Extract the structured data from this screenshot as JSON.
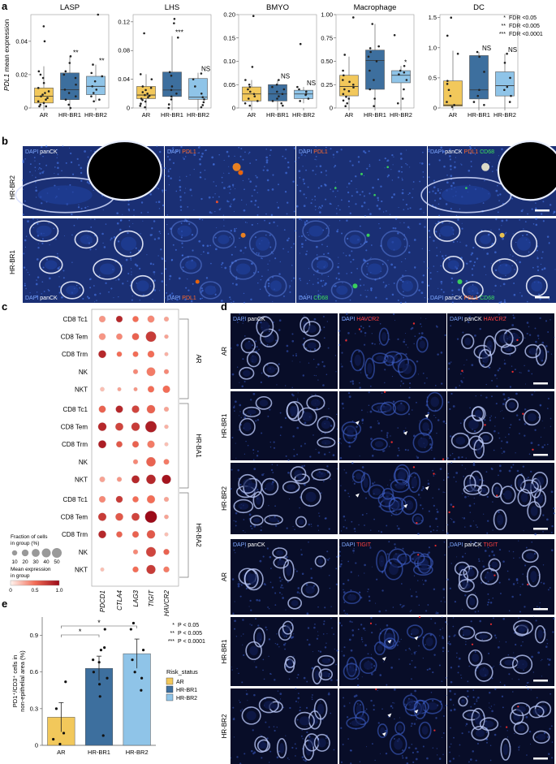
{
  "figure": {
    "panel_a": {
      "letter": "a",
      "ylabel_gene": "PDL1",
      "ylabel_rest": " mean expression",
      "legend": [
        {
          "stars": "*",
          "text": "FDR <0.05"
        },
        {
          "stars": "**",
          "text": "FDR <0.005"
        },
        {
          "stars": "***",
          "text": "FDR <0.0001"
        }
      ]
    },
    "panel_b": {
      "letter": "b",
      "rows": [
        "HR-BR2",
        "HR-BR1"
      ],
      "top_labels": [
        [
          {
            "t": "DAPI",
            "c": "#7fa8ff"
          },
          {
            "t": " panCK",
            "c": "#ffffff"
          }
        ],
        [
          {
            "t": "DAPI",
            "c": "#7fa8ff"
          },
          {
            "t": " PDL1",
            "c": "#ff6a2a"
          }
        ],
        [
          {
            "t": "DAPI",
            "c": "#7fa8ff"
          },
          {
            "t": " PDL1",
            "c": "#ff6a2a"
          }
        ],
        [
          {
            "t": "DAPI",
            "c": "#7fa8ff"
          },
          {
            "t": " panCK",
            "c": "#ffffff"
          },
          {
            "t": " PDL1",
            "c": "#ff6a2a"
          },
          {
            "t": " CD68",
            "c": "#3de05a"
          }
        ]
      ],
      "bottom_labels": [
        [
          {
            "t": "DAPI",
            "c": "#7fa8ff"
          },
          {
            "t": " panCK",
            "c": "#ffffff"
          }
        ],
        [
          {
            "t": "DAPI",
            "c": "#7fa8ff"
          },
          {
            "t": " PDL1",
            "c": "#ff6a2a"
          }
        ],
        [
          {
            "t": "DAPI",
            "c": "#7fa8ff"
          },
          {
            "t": " CD68",
            "c": "#3de05a"
          }
        ],
        [
          {
            "t": "DAPI",
            "c": "#7fa8ff"
          },
          {
            "t": " panCK",
            "c": "#ffffff"
          },
          {
            "t": " PDL1",
            "c": "#ff6a2a"
          },
          {
            "t": " CD68",
            "c": "#3de05a"
          }
        ]
      ]
    },
    "panel_c": {
      "letter": "c",
      "genes": [
        "PDCD1",
        "CTLA4",
        "LAG3",
        "TIGIT",
        "HAVCR2"
      ],
      "groups": [
        {
          "name": "AR",
          "rows": [
            "CD8 Tc1",
            "CD8 Tem",
            "CD8 Trm",
            "NK",
            "NKT"
          ]
        },
        {
          "name": "HR-BA1",
          "rows": [
            "CD8 Tc1",
            "CD8 Tem",
            "CD8 Trm",
            "NK",
            "NKT"
          ]
        },
        {
          "name": "HR-BA2",
          "rows": [
            "CD8 Tc1",
            "CD8 Tem",
            "CD8 Trm",
            "NK",
            "NKT"
          ]
        }
      ],
      "size_legend_title": "Fraction of cells\nin group (%)",
      "size_ticks": [
        "10",
        "20",
        "30",
        "40",
        "50"
      ],
      "color_legend_title": "Mean expression\nin group",
      "color_ticks": [
        "0",
        "0.5",
        "1.0"
      ]
    },
    "panel_d": {
      "letter": "d",
      "top_headers": [
        [
          {
            "t": "DAPI",
            "c": "#7fa8ff"
          },
          {
            "t": " panCK",
            "c": "#ffffff"
          }
        ],
        [
          {
            "t": "DAPI",
            "c": "#7fa8ff"
          },
          {
            "t": " HAVCR2",
            "c": "#ff4040"
          }
        ],
        [
          {
            "t": "DAPI",
            "c": "#7fa8ff"
          },
          {
            "t": " panCK",
            "c": "#ffffff"
          },
          {
            "t": " HAVCR2",
            "c": "#ff4040"
          }
        ]
      ],
      "bottom_headers": [
        [
          {
            "t": "DAPI",
            "c": "#7fa8ff"
          },
          {
            "t": " panCK",
            "c": "#ffffff"
          }
        ],
        [
          {
            "t": "DAPI",
            "c": "#7fa8ff"
          },
          {
            "t": " TIGIT",
            "c": "#ff4040"
          }
        ],
        [
          {
            "t": "DAPI",
            "c": "#7fa8ff"
          },
          {
            "t": " panCK",
            "c": "#ffffff"
          },
          {
            "t": " TIGIT",
            "c": "#ff4040"
          }
        ]
      ],
      "rows": [
        "AR",
        "HR-BR1",
        "HR-BR2"
      ]
    },
    "panel_e": {
      "letter": "e",
      "ylabel": "PD1⁺/CD3⁺ cells in\nnon-epithelial area (%)",
      "legend": [
        {
          "stars": "*",
          "text": "P < 0.05"
        },
        {
          "stars": "**",
          "text": "P < 0.005"
        },
        {
          "stars": "***",
          "text": "P < 0.0001"
        }
      ],
      "risk_title": "Risk_status",
      "risk_items": [
        "AR",
        "HR-BR1",
        "HR-BR2"
      ],
      "sig_marks": [
        "*",
        "*"
      ]
    }
  },
  "colors": {
    "AR": "#f2c85b",
    "HR-BR1": "#3d6f9e",
    "HR-BR2": "#8fc4e8"
  },
  "chart_data": [
    {
      "type": "box",
      "title": "LASP",
      "categories": [
        "AR",
        "HR-BR1",
        "HR-BR2"
      ],
      "ylim": [
        0,
        0.056
      ],
      "yticks": [
        0,
        0.02,
        0.04
      ],
      "ytick_labels": [
        "0",
        "0.02",
        "0.04"
      ],
      "ylabel": "PDL1 mean expression",
      "boxes": [
        {
          "q1": 0.003,
          "median": 0.007,
          "q3": 0.012,
          "whisker_low": 0.0,
          "whisker_high": 0.025
        },
        {
          "q1": 0.005,
          "median": 0.011,
          "q3": 0.021,
          "whisker_low": 0.0,
          "whisker_high": 0.031
        },
        {
          "q1": 0.008,
          "median": 0.013,
          "q3": 0.019,
          "whisker_low": 0.004,
          "whisker_high": 0.026
        }
      ],
      "points": [
        [
          0.049,
          0.04,
          0.022,
          0.02,
          0.018,
          0.015,
          0.012,
          0.01,
          0.009,
          0.008,
          0.007,
          0.006,
          0.005,
          0.004,
          0.003,
          0.002,
          0.001,
          0.001
        ],
        [
          0.031,
          0.027,
          0.022,
          0.02,
          0.018,
          0.014,
          0.011,
          0.009,
          0.007,
          0.005,
          0.002,
          0.0
        ],
        [
          0.056,
          0.026,
          0.021,
          0.019,
          0.016,
          0.013,
          0.011,
          0.009,
          0.007,
          0.005,
          0.004
        ]
      ],
      "sig": [
        "",
        "**",
        "**"
      ]
    },
    {
      "type": "box",
      "title": "LHS",
      "categories": [
        "AR",
        "HR-BR1",
        "HR-BR2"
      ],
      "ylim": [
        0,
        0.13
      ],
      "yticks": [
        0,
        0.04,
        0.08,
        0.12
      ],
      "ytick_labels": [
        "0",
        "0.04",
        "0.08",
        "0.12"
      ],
      "boxes": [
        {
          "q1": 0.013,
          "median": 0.018,
          "q3": 0.03,
          "whisker_low": 0.0,
          "whisker_high": 0.047
        },
        {
          "q1": 0.016,
          "median": 0.025,
          "q3": 0.05,
          "whisker_low": 0.0,
          "whisker_high": 0.1
        },
        {
          "q1": 0.012,
          "median": 0.015,
          "q3": 0.041,
          "whisker_low": 0.0,
          "whisker_high": 0.049
        }
      ],
      "points": [
        [
          0.104,
          0.047,
          0.04,
          0.03,
          0.028,
          0.025,
          0.022,
          0.02,
          0.018,
          0.017,
          0.015,
          0.013,
          0.011,
          0.009,
          0.006,
          0.003,
          0.001
        ],
        [
          0.124,
          0.118,
          0.098,
          0.05,
          0.045,
          0.03,
          0.025,
          0.02,
          0.016,
          0.012,
          0.005,
          0.0
        ],
        [
          0.048,
          0.04,
          0.03,
          0.02,
          0.015,
          0.012,
          0.008,
          0.004,
          0.001
        ]
      ],
      "sig": [
        "",
        "***",
        "NS"
      ]
    },
    {
      "type": "box",
      "title": "BMYO",
      "categories": [
        "AR",
        "HR-BR1",
        "HR-BR2"
      ],
      "ylim": [
        0,
        0.2
      ],
      "yticks": [
        0,
        0.05,
        0.1,
        0.15,
        0.2
      ],
      "ytick_labels": [
        "0",
        "0.05",
        "0.10",
        "0.15",
        "0.20"
      ],
      "boxes": [
        {
          "q1": 0.015,
          "median": 0.03,
          "q3": 0.045,
          "whisker_low": 0.0,
          "whisker_high": 0.06
        },
        {
          "q1": 0.015,
          "median": 0.03,
          "q3": 0.05,
          "whisker_low": 0.0,
          "whisker_high": 0.06
        },
        {
          "q1": 0.02,
          "median": 0.03,
          "q3": 0.038,
          "whisker_low": 0.01,
          "whisker_high": 0.045
        }
      ],
      "points": [
        [
          0.197,
          0.088,
          0.06,
          0.05,
          0.045,
          0.04,
          0.035,
          0.03,
          0.025,
          0.02,
          0.015,
          0.01,
          0.005
        ],
        [
          0.06,
          0.05,
          0.045,
          0.04,
          0.035,
          0.03,
          0.025,
          0.02,
          0.015,
          0.01,
          0.005
        ],
        [
          0.137,
          0.045,
          0.04,
          0.035,
          0.03,
          0.028,
          0.02,
          0.015
        ]
      ],
      "sig": [
        "",
        "NS",
        "NS"
      ]
    },
    {
      "type": "box",
      "title": "Macrophage",
      "categories": [
        "AR",
        "HR-BR1",
        "HR-BR2"
      ],
      "ylim": [
        0,
        1.0
      ],
      "yticks": [
        0,
        0.25,
        0.5,
        0.75,
        1.0
      ],
      "ytick_labels": [
        "0",
        "0.25",
        "0.50",
        "0.75",
        "1.00"
      ],
      "boxes": [
        {
          "q1": 0.13,
          "median": 0.23,
          "q3": 0.35,
          "whisker_low": 0.0,
          "whisker_high": 0.55
        },
        {
          "q1": 0.2,
          "median": 0.51,
          "q3": 0.62,
          "whisker_low": 0.0,
          "whisker_high": 0.9
        },
        {
          "q1": 0.27,
          "median": 0.35,
          "q3": 0.4,
          "whisker_low": 0.0,
          "whisker_high": 0.45
        }
      ],
      "points": [
        [
          0.97,
          0.57,
          0.4,
          0.35,
          0.3,
          0.28,
          0.25,
          0.22,
          0.2,
          0.18,
          0.15,
          0.12,
          0.1,
          0.08,
          0.05,
          0.02
        ],
        [
          0.9,
          0.66,
          0.64,
          0.6,
          0.55,
          0.5,
          0.4,
          0.3,
          0.2,
          0.1,
          0.02
        ],
        [
          0.78,
          0.45,
          0.4,
          0.38,
          0.36,
          0.3,
          0.2,
          0.1,
          0.05
        ]
      ],
      "sig": [
        "",
        "",
        "*"
      ]
    },
    {
      "type": "box",
      "title": "DC",
      "categories": [
        "AR",
        "HR-BR1",
        "HR-BR2"
      ],
      "ylim": [
        0,
        1.55
      ],
      "yticks": [
        0,
        0.5,
        1.0,
        1.5
      ],
      "ytick_labels": [
        "0",
        "0.5",
        "1.0",
        "1.5"
      ],
      "boxes": [
        {
          "q1": 0.03,
          "median": 0.05,
          "q3": 0.45,
          "whisker_low": 0.0,
          "whisker_high": 0.95
        },
        {
          "q1": 0.15,
          "median": 0.3,
          "q3": 0.87,
          "whisker_low": 0.0,
          "whisker_high": 0.93
        },
        {
          "q1": 0.2,
          "median": 0.37,
          "q3": 0.6,
          "whisker_low": 0.0,
          "whisker_high": 0.9
        }
      ],
      "points": [
        [
          1.5,
          1.2,
          0.9,
          0.45,
          0.4,
          0.3,
          0.2,
          0.1,
          0.05,
          0.02
        ],
        [
          0.93,
          0.85,
          0.6,
          0.3,
          0.2,
          0.1,
          0.05
        ],
        [
          0.9,
          0.75,
          0.5,
          0.35,
          0.3,
          0.2,
          0.1
        ]
      ],
      "sig": [
        "",
        "NS",
        "NS"
      ]
    },
    {
      "type": "dot",
      "title": "",
      "genes": [
        "PDCD1",
        "CTLA4",
        "LAG3",
        "TIGIT",
        "HAVCR2"
      ],
      "size_scale_max": 50,
      "rows": [
        {
          "group": "AR",
          "cell": "CD8 Tc1",
          "fraction": [
            18,
            18,
            15,
            22,
            8
          ],
          "expr": [
            0.35,
            0.85,
            0.5,
            0.4,
            0.3
          ]
        },
        {
          "group": "AR",
          "cell": "CD8 Tem",
          "fraction": [
            20,
            16,
            22,
            58,
            5
          ],
          "expr": [
            0.35,
            0.4,
            0.55,
            0.75,
            0.3
          ]
        },
        {
          "group": "AR",
          "cell": "CD8 Trm",
          "fraction": [
            28,
            10,
            12,
            20,
            4
          ],
          "expr": [
            0.85,
            0.5,
            0.5,
            0.5,
            0.25
          ]
        },
        {
          "group": "AR",
          "cell": "NK",
          "fraction": [
            0,
            0,
            8,
            38,
            8
          ],
          "expr": [
            0,
            0,
            0.4,
            0.45,
            0.4
          ]
        },
        {
          "group": "AR",
          "cell": "NKT",
          "fraction": [
            6,
            4,
            4,
            18,
            25
          ],
          "expr": [
            0.2,
            0.3,
            0.35,
            0.5,
            0.5
          ]
        },
        {
          "group": "HR-BA1",
          "cell": "CD8 Tc1",
          "fraction": [
            22,
            24,
            26,
            35,
            8
          ],
          "expr": [
            0.55,
            0.85,
            0.7,
            0.55,
            0.3
          ]
        },
        {
          "group": "HR-BA1",
          "cell": "CD8 Tem",
          "fraction": [
            35,
            30,
            35,
            70,
            5
          ],
          "expr": [
            0.85,
            0.7,
            0.75,
            0.9,
            0.25
          ]
        },
        {
          "group": "HR-BA1",
          "cell": "CD8 Trm",
          "fraction": [
            30,
            16,
            18,
            25,
            4
          ],
          "expr": [
            0.9,
            0.6,
            0.55,
            0.45,
            0.2
          ]
        },
        {
          "group": "HR-BA1",
          "cell": "NK",
          "fraction": [
            0,
            0,
            8,
            45,
            12
          ],
          "expr": [
            0,
            0,
            0.4,
            0.55,
            0.45
          ]
        },
        {
          "group": "HR-BA1",
          "cell": "NKT",
          "fraction": [
            12,
            8,
            30,
            45,
            42
          ],
          "expr": [
            0.3,
            0.35,
            0.85,
            0.85,
            0.95
          ]
        },
        {
          "group": "HR-BA2",
          "cell": "CD8 Tc1",
          "fraction": [
            18,
            20,
            15,
            32,
            8
          ],
          "expr": [
            0.4,
            0.75,
            0.5,
            0.5,
            0.3
          ]
        },
        {
          "group": "HR-BA2",
          "cell": "CD8 Tem",
          "fraction": [
            32,
            28,
            30,
            80,
            6
          ],
          "expr": [
            0.75,
            0.6,
            0.7,
            1.0,
            0.3
          ]
        },
        {
          "group": "HR-BA2",
          "cell": "CD8 Trm",
          "fraction": [
            28,
            15,
            18,
            35,
            4
          ],
          "expr": [
            0.85,
            0.55,
            0.55,
            0.6,
            0.2
          ]
        },
        {
          "group": "HR-BA2",
          "cell": "NK",
          "fraction": [
            0,
            0,
            8,
            50,
            14
          ],
          "expr": [
            0,
            0,
            0.4,
            0.7,
            0.55
          ]
        },
        {
          "group": "HR-BA2",
          "cell": "NKT",
          "fraction": [
            4,
            0,
            14,
            42,
            14
          ],
          "expr": [
            0.2,
            0,
            0.5,
            0.75,
            0.45
          ]
        }
      ]
    },
    {
      "type": "bar",
      "title": "",
      "categories": [
        "AR",
        "HR-BR1",
        "HR-BR2"
      ],
      "values": [
        0.23,
        0.63,
        0.75
      ],
      "errors": [
        0.12,
        0.1,
        0.12
      ],
      "ylabel": "PD1⁺/CD3⁺ cells in non-epithelial area (%)",
      "ylim": [
        0,
        1.05
      ],
      "yticks": [
        0,
        0.3,
        0.6,
        0.9
      ],
      "ytick_labels": [
        "0",
        "0.3",
        "0.6",
        "0.9"
      ],
      "points": [
        [
          0.52,
          0.3,
          0.1,
          0.05,
          0.01
        ],
        [
          0.95,
          0.8,
          0.78,
          0.7,
          0.68,
          0.6,
          0.55,
          0.5,
          0.4,
          0.08
        ],
        [
          1.0,
          0.95,
          0.78,
          0.7,
          0.6,
          0.55,
          0.45
        ]
      ],
      "comparisons": [
        {
          "from": "AR",
          "to": "HR-BR1",
          "label": "*"
        },
        {
          "from": "AR",
          "to": "HR-BR2",
          "label": "*"
        }
      ]
    }
  ]
}
